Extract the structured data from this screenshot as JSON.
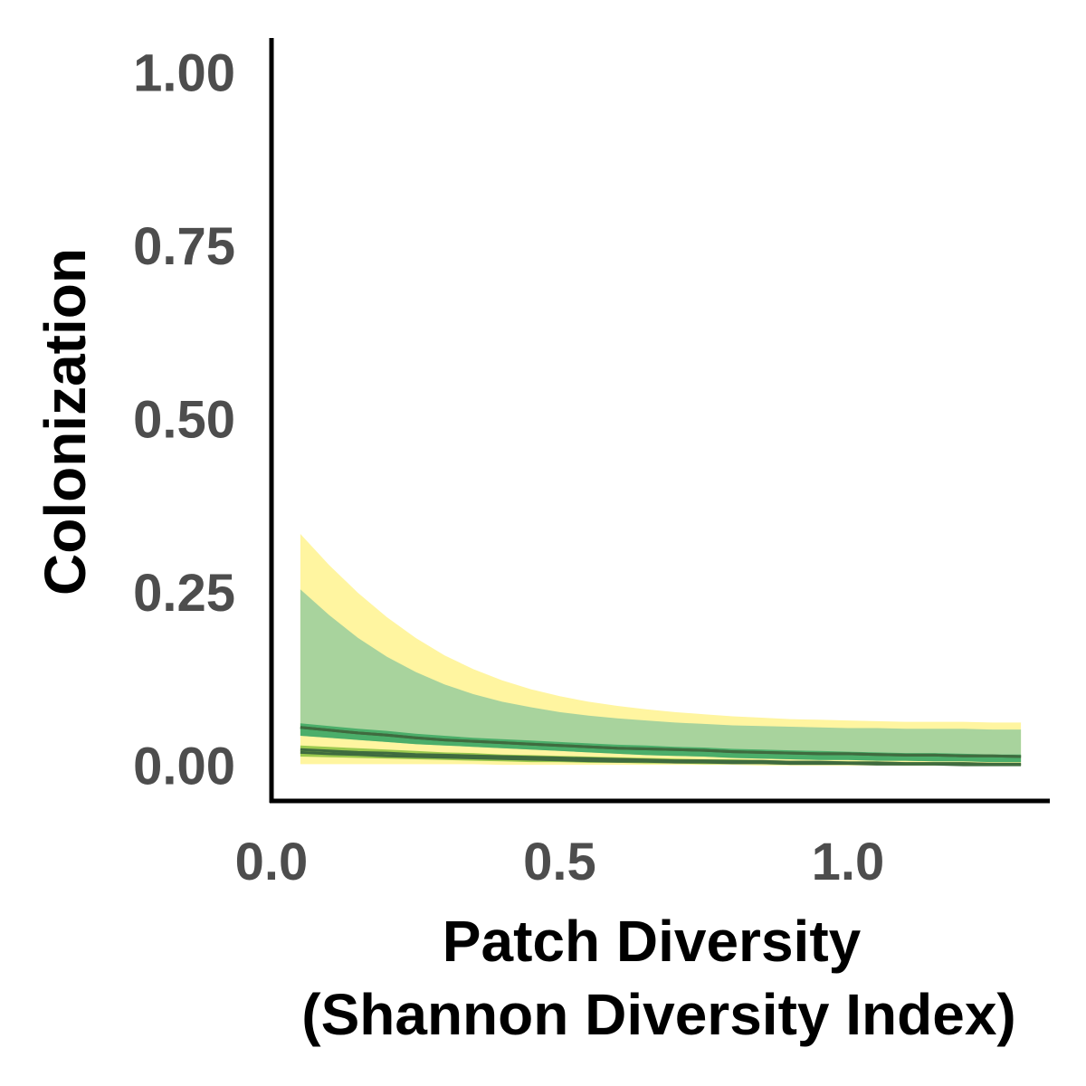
{
  "chart_data": {
    "type": "area",
    "title": "",
    "xlabel_line1": "Patch Diversity",
    "xlabel_line2": "(Shannon Diversity Index)",
    "ylabel": "Colonization",
    "xlim": [
      0.0,
      1.35
    ],
    "ylim": [
      -0.05,
      1.05
    ],
    "x_ticks": [
      0.0,
      0.5,
      1.0
    ],
    "x_tick_labels": [
      "0.0",
      "0.5",
      "1.0"
    ],
    "y_ticks": [
      0.0,
      0.25,
      0.5,
      0.75,
      1.0
    ],
    "y_tick_labels": [
      "0.00",
      "0.25",
      "0.50",
      "0.75",
      "1.00"
    ],
    "grid": false,
    "legend": "none",
    "x": [
      0.05,
      0.1,
      0.15,
      0.2,
      0.25,
      0.3,
      0.35,
      0.4,
      0.45,
      0.5,
      0.55,
      0.6,
      0.65,
      0.7,
      0.75,
      0.8,
      0.85,
      0.9,
      0.95,
      1.0,
      1.05,
      1.1,
      1.15,
      1.2,
      1.25,
      1.3
    ],
    "series": [
      {
        "color": "#fff5a0",
        "line_color": "#3f6b3f",
        "fit": [
          0.024,
          0.022,
          0.02,
          0.019,
          0.017,
          0.016,
          0.015,
          0.014,
          0.013,
          0.012,
          0.011,
          0.01,
          0.009,
          0.008,
          0.008,
          0.007,
          0.007,
          0.006,
          0.006,
          0.005,
          0.005,
          0.004,
          0.004,
          0.004,
          0.003,
          0.003
        ],
        "lower": [
          0.003,
          0.003,
          0.003,
          0.003,
          0.003,
          0.003,
          0.003,
          0.002,
          0.002,
          0.002,
          0.002,
          0.002,
          0.002,
          0.002,
          0.002,
          0.002,
          0.001,
          0.001,
          0.001,
          0.001,
          0.001,
          0.001,
          0.001,
          0.001,
          0.001,
          0.001
        ],
        "upper": [
          0.335,
          0.29,
          0.25,
          0.215,
          0.185,
          0.16,
          0.14,
          0.124,
          0.111,
          0.101,
          0.093,
          0.087,
          0.082,
          0.078,
          0.075,
          0.072,
          0.07,
          0.068,
          0.067,
          0.066,
          0.065,
          0.064,
          0.064,
          0.064,
          0.063,
          0.063
        ]
      },
      {
        "color": "#a8d39d",
        "line_color": "#3f6b3f",
        "fit": [
          0.056,
          0.052,
          0.048,
          0.045,
          0.041,
          0.038,
          0.036,
          0.034,
          0.032,
          0.03,
          0.028,
          0.026,
          0.025,
          0.024,
          0.023,
          0.021,
          0.02,
          0.019,
          0.018,
          0.018,
          0.017,
          0.016,
          0.016,
          0.015,
          0.015,
          0.014
        ],
        "lower": [
          0.044,
          0.041,
          0.038,
          0.035,
          0.032,
          0.03,
          0.028,
          0.026,
          0.024,
          0.022,
          0.02,
          0.018,
          0.016,
          0.015,
          0.014,
          0.012,
          0.011,
          0.01,
          0.009,
          0.009,
          0.008,
          0.008,
          0.007,
          0.007,
          0.006,
          0.006
        ],
        "upper": [
          0.255,
          0.218,
          0.185,
          0.158,
          0.136,
          0.118,
          0.104,
          0.093,
          0.085,
          0.078,
          0.073,
          0.069,
          0.066,
          0.063,
          0.061,
          0.059,
          0.058,
          0.057,
          0.056,
          0.055,
          0.055,
          0.054,
          0.054,
          0.054,
          0.053,
          0.053
        ]
      },
      {
        "color": "#4bae6a",
        "line_color": "#3f6b3f",
        "fit": [
          0.056,
          0.052,
          0.048,
          0.045,
          0.041,
          0.038,
          0.036,
          0.034,
          0.032,
          0.03,
          0.028,
          0.026,
          0.025,
          0.024,
          0.023,
          0.021,
          0.02,
          0.019,
          0.018,
          0.018,
          0.017,
          0.016,
          0.016,
          0.015,
          0.015,
          0.014
        ],
        "lower": [
          0.044,
          0.041,
          0.038,
          0.035,
          0.032,
          0.03,
          0.028,
          0.026,
          0.024,
          0.022,
          0.02,
          0.018,
          0.016,
          0.015,
          0.014,
          0.012,
          0.011,
          0.01,
          0.009,
          0.009,
          0.008,
          0.008,
          0.007,
          0.007,
          0.006,
          0.006
        ],
        "upper": [
          0.062,
          0.058,
          0.054,
          0.051,
          0.047,
          0.044,
          0.041,
          0.039,
          0.037,
          0.035,
          0.033,
          0.031,
          0.03,
          0.028,
          0.027,
          0.025,
          0.024,
          0.023,
          0.022,
          0.021,
          0.02,
          0.019,
          0.019,
          0.018,
          0.017,
          0.017
        ]
      },
      {
        "color": "#9bc94f",
        "line_color": "#3f6b3f",
        "fit": [
          0.02,
          0.018,
          0.017,
          0.015,
          0.014,
          0.013,
          0.012,
          0.011,
          0.01,
          0.009,
          0.008,
          0.007,
          0.007,
          0.006,
          0.006,
          0.005,
          0.005,
          0.004,
          0.004,
          0.004,
          0.003,
          0.003,
          0.003,
          0.002,
          0.002,
          0.002
        ],
        "lower": [
          0.014,
          0.013,
          0.012,
          0.011,
          0.01,
          0.009,
          0.008,
          0.007,
          0.006,
          0.006,
          0.005,
          0.005,
          0.004,
          0.004,
          0.003,
          0.003,
          0.003,
          0.002,
          0.002,
          0.002,
          0.002,
          0.001,
          0.001,
          0.001,
          0.001,
          0.001
        ],
        "upper": [
          0.03,
          0.028,
          0.026,
          0.024,
          0.022,
          0.02,
          0.019,
          0.017,
          0.016,
          0.015,
          0.014,
          0.013,
          0.012,
          0.011,
          0.01,
          0.01,
          0.009,
          0.008,
          0.008,
          0.007,
          0.007,
          0.006,
          0.006,
          0.006,
          0.005,
          0.005
        ]
      }
    ]
  }
}
